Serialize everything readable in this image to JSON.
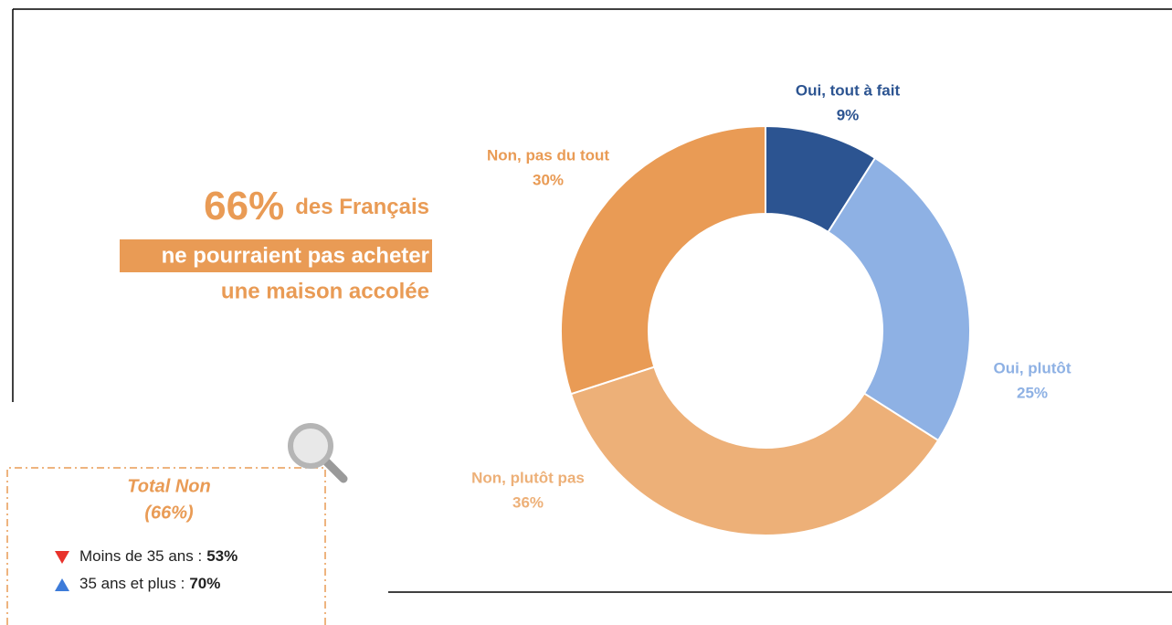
{
  "chart_data": {
    "type": "pie",
    "donut": true,
    "categories": [
      "Oui, tout à fait",
      "Oui, plutôt",
      "Non, plutôt pas",
      "Non, pas du tout"
    ],
    "values": [
      9,
      25,
      36,
      30
    ],
    "value_labels": [
      "9%",
      "25%",
      "36%",
      "30%"
    ],
    "colors": [
      "#2c5491",
      "#8eb1e4",
      "#edb078",
      "#e99b55"
    ],
    "headline": {
      "figure": "66%",
      "text": "des Français",
      "highlight": "ne pourraient pas acheter",
      "line3": "une maison accolée"
    },
    "callout": {
      "title": "Total Non",
      "subtitle": "(66%)",
      "rows": [
        {
          "label": "Moins de 35 ans :",
          "value": "53%",
          "trend": "down"
        },
        {
          "label": "35 ans et plus :",
          "value": "70%",
          "trend": "up"
        }
      ]
    }
  }
}
